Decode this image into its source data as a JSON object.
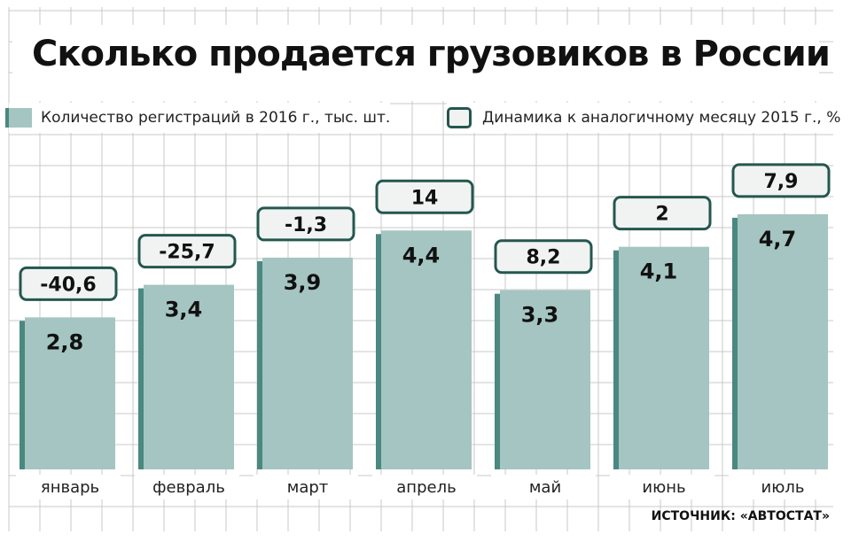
{
  "title": "Сколько продается грузовиков в России",
  "legend": {
    "registrations": "Количество регистраций в 2016 г., тыс. шт.",
    "dynamics": "Динамика к аналогичному месяцу 2015 г., %"
  },
  "source": "ИСТОЧНИК: «АВТОСТАТ»",
  "colors": {
    "bar_face": "#a4c5c1",
    "bar_side": "#4a8880",
    "box_border": "#24574f",
    "box_fill": "#f0f3f2",
    "grid": "#c8c8c8"
  },
  "chart_data": {
    "type": "bar",
    "categories": [
      "январь",
      "февраль",
      "март",
      "апрель",
      "май",
      "июнь",
      "июль"
    ],
    "series": [
      {
        "name": "Количество регистраций в 2016 г., тыс. шт.",
        "values": [
          2.8,
          3.4,
          3.9,
          4.4,
          3.3,
          4.1,
          4.7
        ],
        "labels": [
          "2,8",
          "3,4",
          "3,9",
          "4,4",
          "3,3",
          "4,1",
          "4,7"
        ]
      },
      {
        "name": "Динамика к аналогичному месяцу 2015 г., %",
        "values": [
          -40.6,
          -25.7,
          -1.3,
          14,
          8.2,
          2,
          7.9
        ],
        "labels": [
          "-40,6",
          "-25,7",
          "-1,3",
          "14",
          "8,2",
          "2",
          "7,9"
        ]
      }
    ],
    "grid": true,
    "legend_position": "top"
  }
}
